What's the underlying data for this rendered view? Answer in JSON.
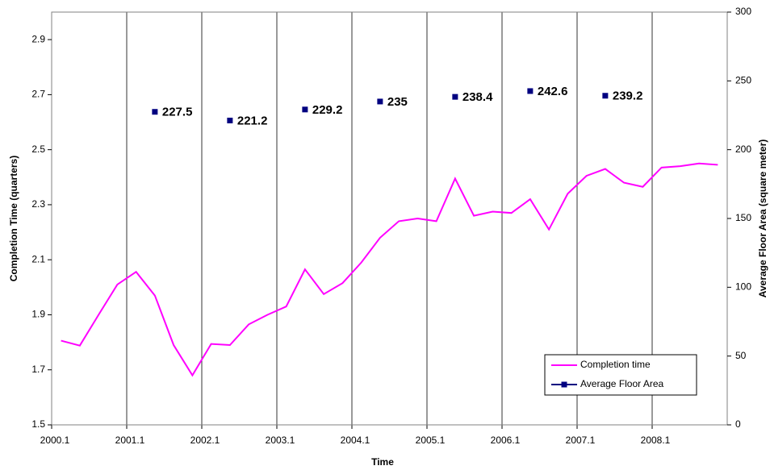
{
  "chart_data": {
    "type": "line",
    "x_label": "Time",
    "y_label": "Completion Time (quarters)",
    "y2_label": "Average Floor Area (square meter)",
    "categories": [
      "2000.1",
      null,
      null,
      null,
      "2001.1",
      null,
      null,
      null,
      "2002.1",
      null,
      null,
      null,
      "2003.1",
      null,
      null,
      null,
      "2004.1",
      null,
      null,
      null,
      "2005.1",
      null,
      null,
      null,
      "2006.1",
      null,
      null,
      null,
      "2007.1",
      null,
      null,
      null,
      "2008.1",
      null,
      null,
      null
    ],
    "ylim": [
      1.5,
      3.0
    ],
    "yticks": [
      1.5,
      1.7,
      1.9,
      2.1,
      2.3,
      2.5,
      2.7,
      2.9
    ],
    "y2lim": [
      0,
      300
    ],
    "y2ticks": [
      0,
      50,
      100,
      150,
      200,
      250,
      300
    ],
    "legend": "lower right",
    "series": [
      {
        "name": "Completion time",
        "color": "#ff00ff",
        "type": "line",
        "values": [
          1.806,
          1.788,
          1.9,
          2.01,
          2.056,
          1.97,
          1.79,
          1.68,
          1.794,
          1.79,
          1.865,
          1.9,
          1.93,
          2.065,
          1.975,
          2.015,
          2.09,
          2.18,
          2.24,
          2.25,
          2.24,
          2.395,
          2.26,
          2.275,
          2.27,
          2.32,
          2.21,
          2.34,
          2.405,
          2.43,
          2.38,
          2.365,
          2.435,
          2.44,
          2.45,
          2.445
        ]
      },
      {
        "name": "Average Floor Area",
        "color": "#000080",
        "type": "scatter",
        "axis": "y2",
        "values": [
          null,
          null,
          null,
          null,
          null,
          227.5,
          null,
          null,
          null,
          221.2,
          null,
          null,
          null,
          229.2,
          null,
          null,
          null,
          235,
          null,
          null,
          null,
          238.4,
          null,
          null,
          null,
          242.6,
          null,
          null,
          null,
          239.2,
          null,
          null,
          null,
          null,
          null,
          null
        ]
      }
    ]
  }
}
